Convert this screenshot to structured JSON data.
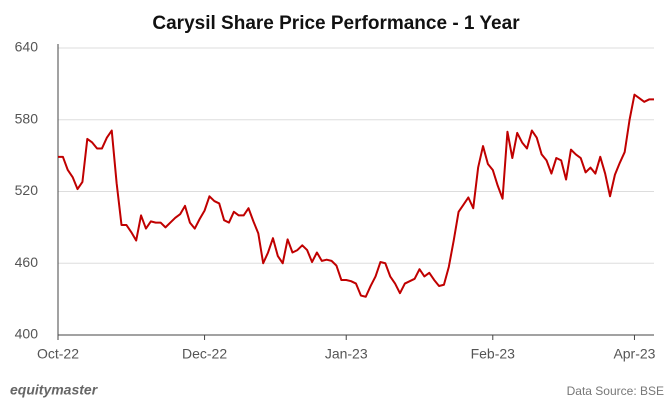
{
  "chart_data": {
    "type": "line",
    "title": "Carysil Share Price Performance - 1 Year",
    "series": [
      {
        "name": "Carysil",
        "color": "#c00000",
        "values": [
          549,
          549,
          538,
          532,
          522,
          528,
          564,
          561,
          556,
          556,
          565,
          571,
          527,
          492,
          492,
          486,
          479,
          500,
          489,
          495,
          494,
          494,
          490,
          494,
          498,
          501,
          508,
          494,
          489,
          497,
          504,
          516,
          512,
          510,
          496,
          494,
          503,
          500,
          500,
          506,
          495,
          485,
          460,
          469,
          481,
          466,
          460,
          480,
          469,
          471,
          475,
          471,
          461,
          469,
          462,
          463,
          462,
          458,
          446,
          446,
          445,
          443,
          433,
          432,
          441,
          449,
          461,
          460,
          449,
          443,
          435,
          443,
          445,
          447,
          455,
          449,
          452,
          446,
          441,
          442,
          457,
          479,
          503,
          509,
          515,
          506,
          540,
          558,
          543,
          538,
          525,
          514,
          570,
          548,
          569,
          561,
          556,
          571,
          565,
          551,
          546,
          535,
          548,
          546,
          530,
          555,
          551,
          548,
          536,
          540,
          535,
          549,
          535,
          516,
          534,
          544,
          553,
          580,
          601,
          598,
          595,
          597,
          597
        ]
      }
    ],
    "xlim": [
      0,
      122
    ],
    "xticks": [
      {
        "value": 0,
        "label": "Oct-22"
      },
      {
        "value": 30,
        "label": "Dec-22"
      },
      {
        "value": 59,
        "label": "Jan-23"
      },
      {
        "value": 89,
        "label": "Feb-23"
      },
      {
        "value": 118,
        "label": "Apr-23"
      }
    ],
    "ylim": [
      400,
      640
    ],
    "yticks": [
      400,
      460,
      520,
      580,
      640
    ],
    "grid": true
  },
  "footer": {
    "brand": "equitymaster",
    "source": "Data Source: BSE"
  }
}
